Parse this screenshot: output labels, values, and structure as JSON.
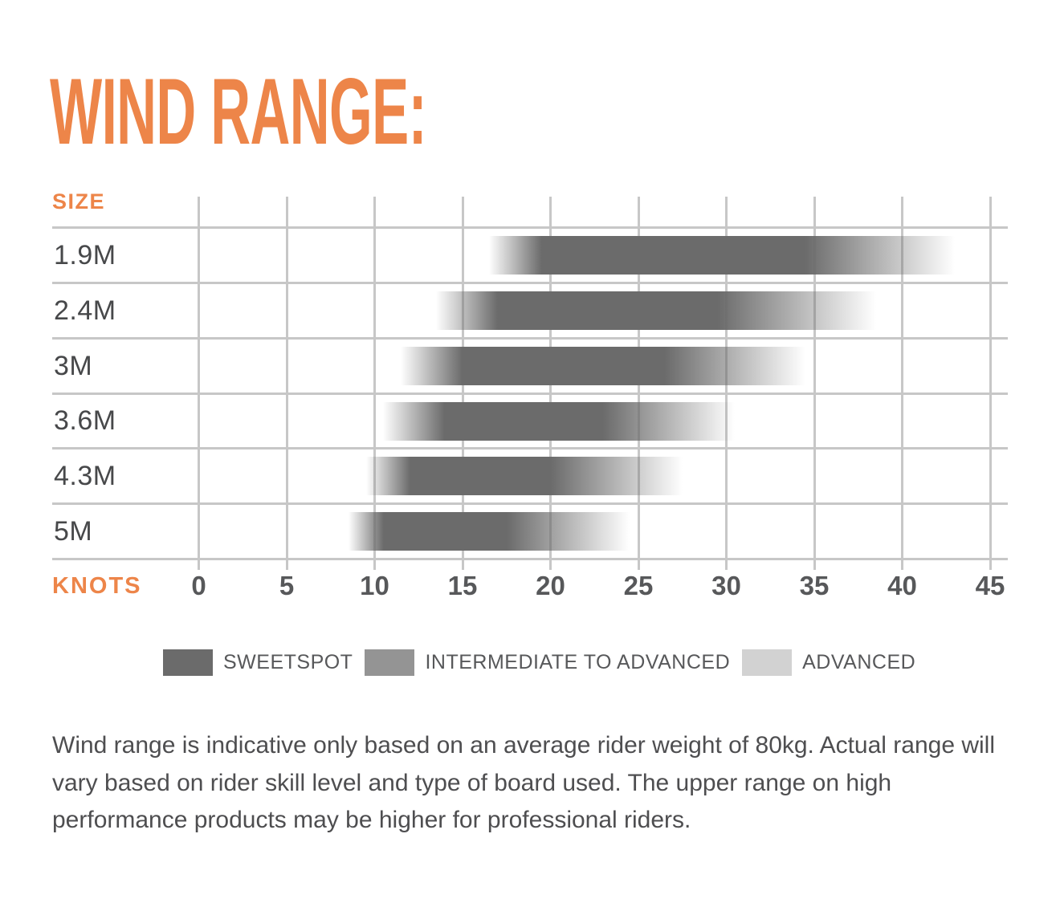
{
  "title": "WIND RANGE:",
  "footnote": "Wind range is indicative only based on an average rider weight of 80kg. Actual range will vary based on rider skill level and type of board used. The upper range on high performance products may be higher for professional riders.",
  "colors": {
    "accent": "#ED8549",
    "bar": "#6b6b6b",
    "grid": "#c7c7c7",
    "tick_text": "#57585a"
  },
  "chart_data": {
    "type": "bar",
    "variant": "horizontal-range-gradient",
    "title": "WIND RANGE:",
    "categories": [
      "1.9M",
      "2.4M",
      "3M",
      "3.6M",
      "4.3M",
      "5M"
    ],
    "x": {
      "label": "KNOTS",
      "min": 0,
      "max": 45,
      "ticks": [
        0,
        5,
        10,
        15,
        20,
        25,
        30,
        35,
        40,
        45
      ]
    },
    "y": {
      "label": "SIZE"
    },
    "series": [
      {
        "name": "Total wind range (knots)",
        "ranges": [
          [
            16.5,
            43.0
          ],
          [
            13.5,
            38.5
          ],
          [
            11.5,
            34.5
          ],
          [
            10.5,
            30.5
          ],
          [
            9.5,
            27.5
          ],
          [
            8.5,
            24.5
          ]
        ]
      },
      {
        "name": "Sweetspot solid zone (knots)",
        "ranges": [
          [
            19.5,
            34.5
          ],
          [
            17.0,
            29.5
          ],
          [
            15.0,
            26.5
          ],
          [
            14.0,
            23.0
          ],
          [
            12.0,
            20.0
          ],
          [
            10.5,
            17.5
          ]
        ]
      }
    ],
    "legend": [
      {
        "label": "SWEETSPOT",
        "color": "#6b6b6b"
      },
      {
        "label": "INTERMEDIATE TO ADVANCED",
        "color": "#949494"
      },
      {
        "label": "ADVANCED",
        "color": "#d2d2d2"
      }
    ],
    "legend_position": "bottom",
    "grid": true
  }
}
